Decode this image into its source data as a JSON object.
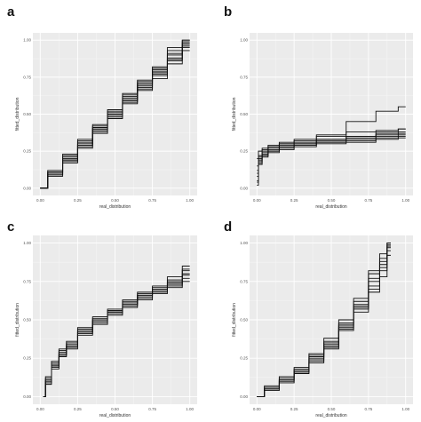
{
  "chart_data": [
    {
      "panel": "a",
      "type": "line",
      "xlabel": "real_distribution",
      "ylabel": "fitted_distribution",
      "xlim": [
        0,
        1
      ],
      "ylim": [
        0,
        1
      ],
      "xticks": [
        "0.00",
        "0.25",
        "0.50",
        "0.75",
        "1.00"
      ],
      "yticks": [
        "0.00",
        "0.25",
        "0.50",
        "0.75",
        "1.00"
      ],
      "grid": true,
      "series": [
        {
          "x": [
            0.0,
            0.1,
            0.2,
            0.3,
            0.4,
            0.5,
            0.6,
            0.7,
            0.8,
            0.9,
            1.0
          ],
          "y": [
            0.0,
            0.08,
            0.19,
            0.27,
            0.38,
            0.49,
            0.58,
            0.66,
            0.77,
            0.87,
            0.98
          ]
        },
        {
          "x": [
            0.0,
            0.1,
            0.2,
            0.3,
            0.4,
            0.5,
            0.6,
            0.7,
            0.8,
            0.9,
            1.0
          ],
          "y": [
            0.0,
            0.11,
            0.22,
            0.32,
            0.4,
            0.51,
            0.63,
            0.72,
            0.8,
            0.93,
            0.97
          ]
        },
        {
          "x": [
            0.0,
            0.1,
            0.2,
            0.3,
            0.4,
            0.5,
            0.6,
            0.7,
            0.8,
            0.9,
            1.0
          ],
          "y": [
            0.0,
            0.09,
            0.18,
            0.3,
            0.41,
            0.5,
            0.59,
            0.7,
            0.78,
            0.86,
            0.95
          ]
        },
        {
          "x": [
            0.0,
            0.1,
            0.2,
            0.3,
            0.4,
            0.5,
            0.6,
            0.7,
            0.8,
            0.9,
            1.0
          ],
          "y": [
            0.0,
            0.12,
            0.21,
            0.29,
            0.39,
            0.48,
            0.61,
            0.69,
            0.82,
            0.9,
            1.0
          ]
        },
        {
          "x": [
            0.0,
            0.1,
            0.2,
            0.3,
            0.4,
            0.5,
            0.6,
            0.7,
            0.8,
            0.9,
            1.0
          ],
          "y": [
            0.0,
            0.1,
            0.2,
            0.31,
            0.37,
            0.52,
            0.62,
            0.68,
            0.74,
            0.84,
            0.96
          ]
        },
        {
          "x": [
            0.0,
            0.1,
            0.2,
            0.3,
            0.4,
            0.5,
            0.6,
            0.7,
            0.8,
            0.9,
            1.0
          ],
          "y": [
            0.0,
            0.09,
            0.23,
            0.28,
            0.42,
            0.5,
            0.57,
            0.73,
            0.79,
            0.95,
            0.99
          ]
        },
        {
          "x": [
            0.0,
            0.1,
            0.2,
            0.3,
            0.4,
            0.5,
            0.6,
            0.7,
            0.8,
            0.9,
            1.0
          ],
          "y": [
            0.0,
            0.11,
            0.19,
            0.33,
            0.4,
            0.47,
            0.6,
            0.67,
            0.81,
            0.88,
            0.93
          ]
        },
        {
          "x": [
            0.0,
            0.1,
            0.2,
            0.3,
            0.4,
            0.5,
            0.6,
            0.7,
            0.8,
            0.9,
            1.0
          ],
          "y": [
            0.0,
            0.1,
            0.17,
            0.29,
            0.43,
            0.53,
            0.64,
            0.71,
            0.76,
            0.91,
            1.0
          ]
        }
      ]
    },
    {
      "panel": "b",
      "type": "line",
      "xlabel": "real_distribution",
      "ylabel": "fitted_distribution",
      "xlim": [
        0,
        1
      ],
      "ylim": [
        0,
        1
      ],
      "xticks": [
        "0.00",
        "0.25",
        "0.50",
        "0.75",
        "1.00"
      ],
      "yticks": [
        "0.00",
        "0.25",
        "0.50",
        "0.75",
        "1.00"
      ],
      "grid": true,
      "series": [
        {
          "x": [
            0.0,
            0.02,
            0.05,
            0.1,
            0.2,
            0.3,
            0.5,
            0.7,
            0.9,
            1.0
          ],
          "y": [
            0.05,
            0.18,
            0.22,
            0.25,
            0.27,
            0.29,
            0.31,
            0.33,
            0.34,
            0.35
          ]
        },
        {
          "x": [
            0.0,
            0.02,
            0.05,
            0.1,
            0.2,
            0.3,
            0.5,
            0.7,
            0.9,
            1.0
          ],
          "y": [
            0.1,
            0.2,
            0.24,
            0.26,
            0.28,
            0.3,
            0.32,
            0.34,
            0.36,
            0.37
          ]
        },
        {
          "x": [
            0.0,
            0.02,
            0.05,
            0.1,
            0.2,
            0.3,
            0.5,
            0.7,
            0.9,
            1.0
          ],
          "y": [
            0.15,
            0.22,
            0.26,
            0.28,
            0.29,
            0.3,
            0.33,
            0.35,
            0.37,
            0.38
          ]
        },
        {
          "x": [
            0.0,
            0.02,
            0.05,
            0.1,
            0.2,
            0.3,
            0.5,
            0.7,
            0.9,
            1.0
          ],
          "y": [
            0.02,
            0.16,
            0.21,
            0.24,
            0.26,
            0.28,
            0.3,
            0.31,
            0.33,
            0.34
          ]
        },
        {
          "x": [
            0.0,
            0.02,
            0.05,
            0.1,
            0.2,
            0.3,
            0.5,
            0.7,
            0.9,
            1.0
          ],
          "y": [
            0.2,
            0.25,
            0.27,
            0.28,
            0.3,
            0.31,
            0.33,
            0.35,
            0.38,
            0.4
          ]
        },
        {
          "x": [
            0.0,
            0.02,
            0.05,
            0.1,
            0.2,
            0.3,
            0.5,
            0.7,
            0.9,
            1.0
          ],
          "y": [
            0.08,
            0.19,
            0.23,
            0.27,
            0.3,
            0.32,
            0.35,
            0.45,
            0.52,
            0.55
          ]
        },
        {
          "x": [
            0.0,
            0.02,
            0.05,
            0.1,
            0.2,
            0.3,
            0.5,
            0.7,
            0.9,
            1.0
          ],
          "y": [
            0.12,
            0.21,
            0.25,
            0.29,
            0.31,
            0.33,
            0.36,
            0.38,
            0.39,
            0.4
          ]
        },
        {
          "x": [
            0.0,
            0.02,
            0.05,
            0.1,
            0.2,
            0.3,
            0.5,
            0.7,
            0.9,
            1.0
          ],
          "y": [
            0.04,
            0.17,
            0.22,
            0.25,
            0.28,
            0.29,
            0.31,
            0.32,
            0.35,
            0.36
          ]
        }
      ]
    },
    {
      "panel": "c",
      "type": "line",
      "xlabel": "real_distribution",
      "ylabel": "fitted_distribution",
      "xlim": [
        0,
        1
      ],
      "ylim": [
        0,
        1
      ],
      "xticks": [
        "0.00",
        "0.25",
        "0.50",
        "0.75",
        "1.00"
      ],
      "yticks": [
        "0.00",
        "0.25",
        "0.50",
        "0.75",
        "1.00"
      ],
      "grid": true,
      "series": [
        {
          "x": [
            0.02,
            0.05,
            0.1,
            0.15,
            0.2,
            0.3,
            0.4,
            0.5,
            0.6,
            0.7,
            0.8,
            0.9,
            1.0
          ],
          "y": [
            0.0,
            0.1,
            0.2,
            0.28,
            0.33,
            0.42,
            0.49,
            0.55,
            0.6,
            0.65,
            0.69,
            0.73,
            0.79
          ]
        },
        {
          "x": [
            0.02,
            0.05,
            0.1,
            0.15,
            0.2,
            0.3,
            0.4,
            0.5,
            0.6,
            0.7,
            0.8,
            0.9,
            1.0
          ],
          "y": [
            0.0,
            0.12,
            0.22,
            0.29,
            0.35,
            0.43,
            0.5,
            0.56,
            0.61,
            0.66,
            0.7,
            0.76,
            0.82
          ]
        },
        {
          "x": [
            0.02,
            0.05,
            0.1,
            0.15,
            0.2,
            0.3,
            0.4,
            0.5,
            0.6,
            0.7,
            0.8,
            0.9,
            1.0
          ],
          "y": [
            0.0,
            0.08,
            0.18,
            0.26,
            0.32,
            0.41,
            0.48,
            0.54,
            0.59,
            0.63,
            0.68,
            0.71,
            0.75
          ]
        },
        {
          "x": [
            0.02,
            0.05,
            0.1,
            0.15,
            0.2,
            0.3,
            0.4,
            0.5,
            0.6,
            0.7,
            0.8,
            0.9,
            1.0
          ],
          "y": [
            0.0,
            0.11,
            0.21,
            0.3,
            0.34,
            0.44,
            0.51,
            0.57,
            0.62,
            0.67,
            0.72,
            0.78,
            0.85
          ]
        },
        {
          "x": [
            0.02,
            0.05,
            0.1,
            0.15,
            0.2,
            0.3,
            0.4,
            0.5,
            0.6,
            0.7,
            0.8,
            0.9,
            1.0
          ],
          "y": [
            0.0,
            0.09,
            0.19,
            0.27,
            0.31,
            0.4,
            0.47,
            0.53,
            0.58,
            0.64,
            0.67,
            0.72,
            0.77
          ]
        },
        {
          "x": [
            0.02,
            0.05,
            0.1,
            0.15,
            0.2,
            0.3,
            0.4,
            0.5,
            0.6,
            0.7,
            0.8,
            0.9,
            1.0
          ],
          "y": [
            0.0,
            0.13,
            0.23,
            0.31,
            0.36,
            0.45,
            0.52,
            0.56,
            0.63,
            0.68,
            0.71,
            0.74,
            0.8
          ]
        },
        {
          "x": [
            0.02,
            0.05,
            0.1,
            0.15,
            0.2,
            0.3,
            0.4,
            0.5,
            0.6,
            0.7,
            0.8,
            0.9,
            1.0
          ],
          "y": [
            0.0,
            0.1,
            0.2,
            0.27,
            0.33,
            0.42,
            0.5,
            0.55,
            0.6,
            0.66,
            0.7,
            0.75,
            0.83
          ]
        }
      ]
    },
    {
      "panel": "d",
      "type": "line",
      "xlabel": "real_distribution",
      "ylabel": "fitted_distribution",
      "xlim": [
        0,
        1
      ],
      "ylim": [
        0,
        1
      ],
      "xticks": [
        "0.00",
        "0.25",
        "0.50",
        "0.75",
        "1.00"
      ],
      "yticks": [
        "0.00",
        "0.25",
        "0.50",
        "0.75",
        "1.00"
      ],
      "grid": true,
      "series": [
        {
          "x": [
            0.0,
            0.1,
            0.2,
            0.3,
            0.4,
            0.5,
            0.6,
            0.7,
            0.8,
            0.85,
            0.9
          ],
          "y": [
            0.0,
            0.05,
            0.1,
            0.16,
            0.24,
            0.33,
            0.45,
            0.58,
            0.75,
            0.86,
            0.98
          ]
        },
        {
          "x": [
            0.0,
            0.1,
            0.2,
            0.3,
            0.4,
            0.5,
            0.6,
            0.7,
            0.8,
            0.85,
            0.9
          ],
          "y": [
            0.0,
            0.06,
            0.12,
            0.18,
            0.26,
            0.36,
            0.48,
            0.62,
            0.8,
            0.9,
            1.0
          ]
        },
        {
          "x": [
            0.0,
            0.1,
            0.2,
            0.3,
            0.4,
            0.5,
            0.6,
            0.7,
            0.8,
            0.85,
            0.9
          ],
          "y": [
            0.0,
            0.04,
            0.09,
            0.15,
            0.22,
            0.31,
            0.43,
            0.55,
            0.72,
            0.82,
            0.95
          ]
        },
        {
          "x": [
            0.0,
            0.1,
            0.2,
            0.3,
            0.4,
            0.5,
            0.6,
            0.7,
            0.8,
            0.85,
            0.9
          ],
          "y": [
            0.0,
            0.05,
            0.11,
            0.17,
            0.25,
            0.34,
            0.46,
            0.6,
            0.7,
            0.78,
            0.92
          ]
        },
        {
          "x": [
            0.0,
            0.1,
            0.2,
            0.3,
            0.4,
            0.5,
            0.6,
            0.7,
            0.8,
            0.85,
            0.9
          ],
          "y": [
            0.0,
            0.07,
            0.13,
            0.19,
            0.28,
            0.38,
            0.5,
            0.64,
            0.82,
            0.93,
            1.0
          ]
        },
        {
          "x": [
            0.0,
            0.1,
            0.2,
            0.3,
            0.4,
            0.5,
            0.6,
            0.7,
            0.8,
            0.85,
            0.9
          ],
          "y": [
            0.0,
            0.05,
            0.1,
            0.17,
            0.23,
            0.32,
            0.44,
            0.57,
            0.68,
            0.88,
            0.97
          ]
        },
        {
          "x": [
            0.0,
            0.1,
            0.2,
            0.3,
            0.4,
            0.5,
            0.6,
            0.7,
            0.8,
            0.85,
            0.9
          ],
          "y": [
            0.0,
            0.06,
            0.11,
            0.16,
            0.27,
            0.35,
            0.47,
            0.59,
            0.77,
            0.84,
            0.99
          ]
        }
      ]
    }
  ],
  "style": {
    "panel_bg": "#ebebeb",
    "grid_color": "#ffffff",
    "line_color": "#111111"
  }
}
